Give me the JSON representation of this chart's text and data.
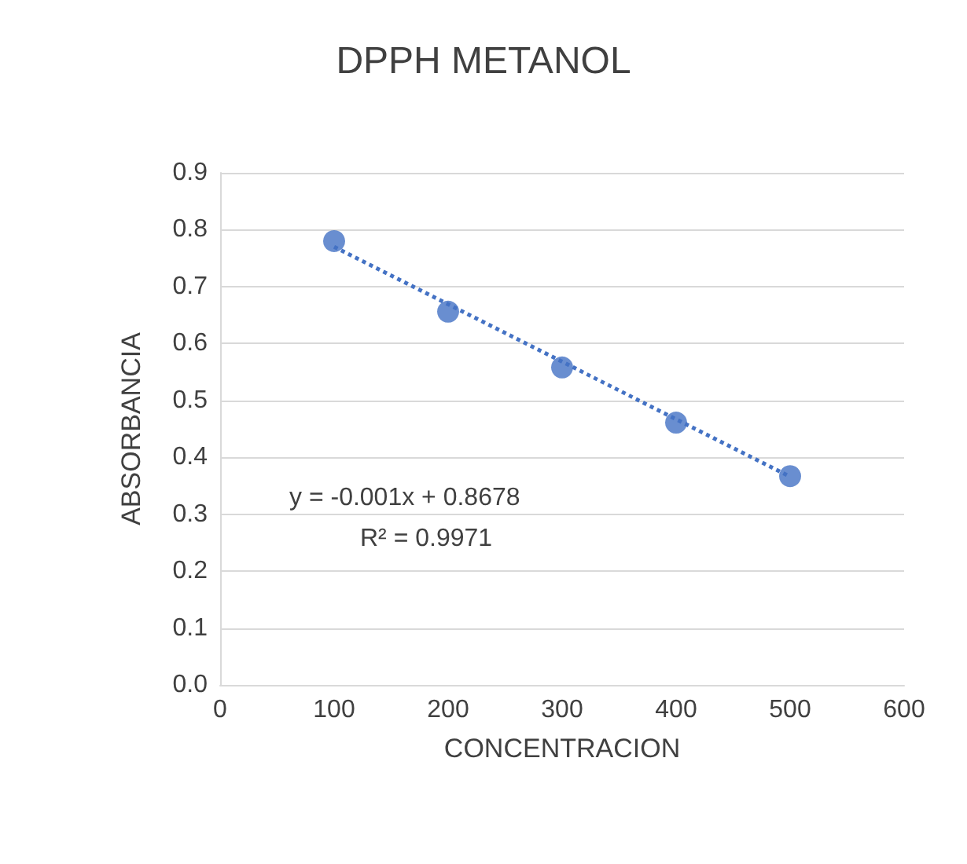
{
  "chart_data": {
    "type": "scatter",
    "title": "DPPH METANOL",
    "xlabel": "CONCENTRACION",
    "ylabel": "ABSORBANCIA",
    "series": [
      {
        "color": "#4472c4",
        "x": [
          100,
          200,
          300,
          400,
          500
        ],
        "values": [
          0.78,
          0.656,
          0.558,
          0.461,
          0.367
        ],
        "marker": "circle"
      },
      {
        "type": "line",
        "color": "#4472c4",
        "x": [
          100,
          500
        ],
        "values": [
          0.77,
          0.366
        ],
        "line_style": "dotted",
        "marker": "none"
      }
    ],
    "xlim": [
      0,
      600
    ],
    "xticks": [
      0,
      100,
      200,
      300,
      400,
      500,
      600
    ],
    "ylim": [
      0,
      0.9
    ],
    "yticks": [
      {
        "value": 0,
        "label": "0.0"
      },
      {
        "value": 0.1,
        "label": "0.1"
      },
      {
        "value": 0.2,
        "label": "0.2"
      },
      {
        "value": 0.3,
        "label": "0.3"
      },
      {
        "value": 0.4,
        "label": "0.4"
      },
      {
        "value": 0.5,
        "label": "0.5"
      },
      {
        "value": 0.6,
        "label": "0.6"
      },
      {
        "value": 0.7,
        "label": "0.7"
      },
      {
        "value": 0.8,
        "label": "0.8"
      },
      {
        "value": 0.9,
        "label": "0.9"
      }
    ],
    "grid": "y",
    "legend": false,
    "annotations": [
      "y = -0.001x + 0.8678",
      "R² = 0.9971"
    ]
  }
}
